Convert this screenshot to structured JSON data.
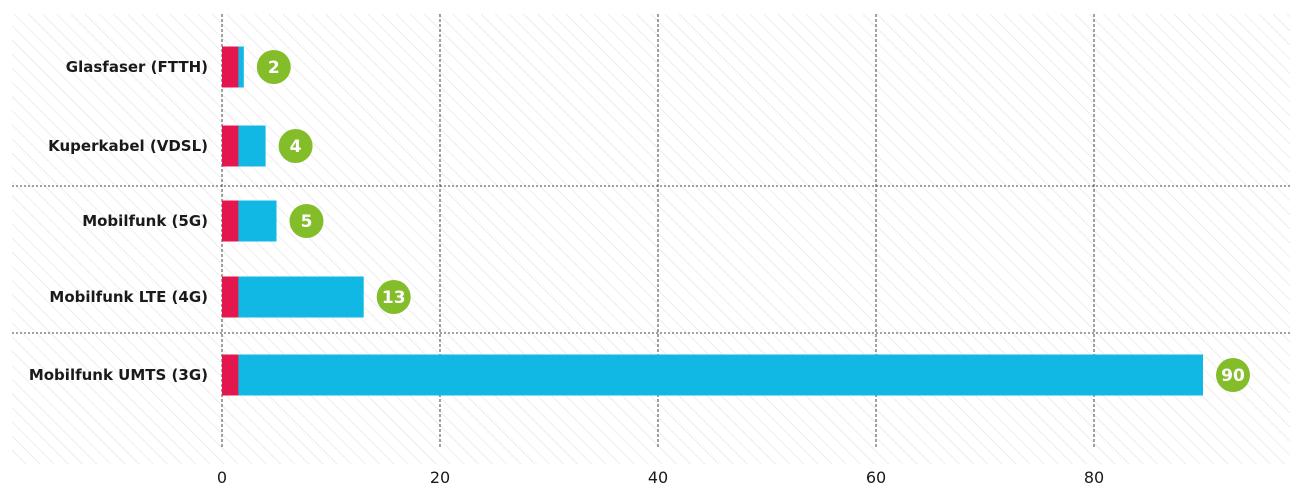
{
  "chart_data": {
    "type": "bar",
    "orientation": "horizontal",
    "title": "",
    "xlabel": "",
    "ylabel": "",
    "categories": [
      "Glasfaser (FTTH)",
      "Kuperkabel (VDSL)",
      "Mobilfunk (5G)",
      "Mobilfunk LTE (4G)",
      "Mobilfunk UMTS (3G)"
    ],
    "values": [
      2,
      4,
      5,
      13,
      90
    ],
    "value_labels": [
      "2",
      "4",
      "5",
      "13",
      "90"
    ],
    "xlim": [
      0,
      95
    ],
    "xticks": [
      0,
      20,
      40,
      60,
      80
    ],
    "xtick_labels": [
      "0",
      "20",
      "40",
      "60",
      "80"
    ],
    "grid": true,
    "bar_base_value": 1.5,
    "colors": {
      "bar": "#12b8e4",
      "bar_base": "#e3174e",
      "badge": "#84bd2a",
      "hatch": "#dddddd",
      "grid": "#444444"
    }
  }
}
